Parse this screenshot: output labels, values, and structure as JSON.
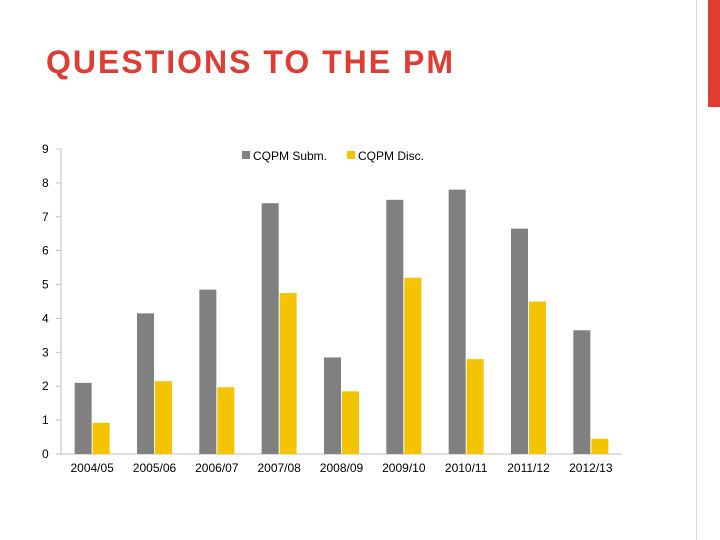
{
  "slide": {
    "title": "QUESTIONS TO THE PM",
    "accent_color": "#e03c31",
    "title_color": "#e03c31"
  },
  "chart_data": {
    "type": "bar",
    "categories": [
      "2004/05",
      "2005/06",
      "2006/07",
      "2007/08",
      "2008/09",
      "2009/10",
      "2010/11",
      "2011/12",
      "2012/13"
    ],
    "series": [
      {
        "name": "CQPM Subm.",
        "color": "#808080",
        "values": [
          2.1,
          4.15,
          4.85,
          7.4,
          2.85,
          7.5,
          7.8,
          6.65,
          3.65
        ]
      },
      {
        "name": "CQPM Disc.",
        "color": "#f5c400",
        "values": [
          0.92,
          2.15,
          1.97,
          4.75,
          1.85,
          5.2,
          2.8,
          4.5,
          0.45
        ]
      }
    ],
    "yticks": [
      0,
      1,
      2,
      3,
      4,
      5,
      6,
      7,
      8,
      9
    ],
    "ylim": [
      0,
      9
    ],
    "legend_position": "top",
    "grid": false
  }
}
